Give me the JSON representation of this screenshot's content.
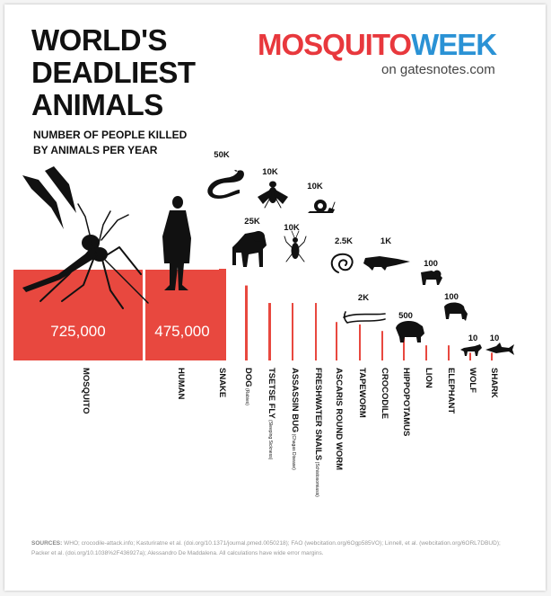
{
  "header": {
    "title_lines": [
      "WORLD'S",
      "DEADLIEST",
      "ANIMALS"
    ],
    "subtitle_lines": [
      "NUMBER OF PEOPLE KILLED",
      "BY ANIMALS PER YEAR"
    ],
    "brand_part1": "MOSQUITO",
    "brand_part2": "WEEK",
    "brand_sub": "on gatesnotes.com"
  },
  "sources": {
    "label": "SOURCES:",
    "text": "WHO; crocodile-attack.info; Kasturiratne et al. (doi.org/10.1371/journal.pmed.0050218); FAO (webcitation.org/6Ogp585VO); Linnell, et al. (webcitation.org/6ORL7DBUD); Packer et al. (doi.org/10.1038%2F436927a); Alessandro De Maddalena. All calculations have wide error margins."
  },
  "colors": {
    "bar": "#e8483f",
    "icon": "#111111",
    "brand_red": "#e8383d",
    "brand_blue": "#2a92d5"
  },
  "chart_data": {
    "type": "bar",
    "title": "WORLD'S DEADLIEST ANIMALS",
    "subtitle": "NUMBER OF PEOPLE KILLED BY ANIMALS PER YEAR",
    "categories": [
      "MOSQUITO",
      "HUMAN",
      "SNAKE",
      "DOG",
      "TSETSE FLY",
      "ASSASSIN BUG",
      "FRESHWATER SNAILS",
      "ASCARIS ROUND WORM",
      "TAPEWORM",
      "CROCODILE",
      "HIPPOPOTAMUS",
      "LION",
      "ELEPHANT",
      "WOLF",
      "SHARK"
    ],
    "notes": [
      "",
      "",
      "",
      "(Rabies)",
      "(Sleeping Sickness)",
      "(Chagas Disease)",
      "(Schistosomiasis)",
      "",
      "",
      "",
      "",
      "",
      "",
      "",
      ""
    ],
    "values": [
      725000,
      475000,
      50000,
      25000,
      10000,
      10000,
      10000,
      2500,
      2000,
      1000,
      500,
      100,
      100,
      10,
      10
    ],
    "labels": [
      "725,000",
      "475,000",
      "50K",
      "25K",
      "10K",
      "10K",
      "10K",
      "2.5K",
      "2K",
      "1K",
      "500",
      "100",
      "100",
      "10",
      "10"
    ],
    "icons": [
      "mosquito-icon",
      "human-icon",
      "snake-icon",
      "dog-icon",
      "tsetse-fly-icon",
      "assassin-bug-icon",
      "snail-icon",
      "roundworm-icon",
      "tapeworm-icon",
      "crocodile-icon",
      "hippo-icon",
      "lion-icon",
      "elephant-icon",
      "wolf-icon",
      "shark-icon"
    ],
    "xlabel": "",
    "ylabel": "",
    "grid": false,
    "legend": "none"
  }
}
